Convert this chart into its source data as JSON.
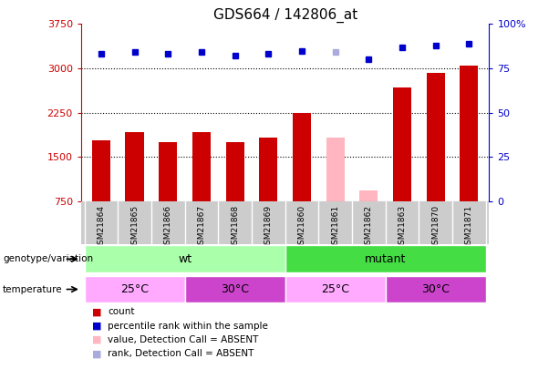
{
  "title": "GDS664 / 142806_at",
  "samples": [
    "GSM21864",
    "GSM21865",
    "GSM21866",
    "GSM21867",
    "GSM21868",
    "GSM21869",
    "GSM21860",
    "GSM21861",
    "GSM21862",
    "GSM21863",
    "GSM21870",
    "GSM21871"
  ],
  "counts": [
    1780,
    1930,
    1760,
    1930,
    1760,
    1830,
    2250,
    1830,
    940,
    2680,
    2930,
    3040
  ],
  "count_colors": [
    "#cc0000",
    "#cc0000",
    "#cc0000",
    "#cc0000",
    "#cc0000",
    "#cc0000",
    "#cc0000",
    "#ffb6c1",
    "#ffb6c1",
    "#cc0000",
    "#cc0000",
    "#cc0000"
  ],
  "percentile_ranks": [
    83,
    84,
    83,
    84,
    82,
    83,
    85,
    84,
    80,
    87,
    88,
    89
  ],
  "rank_colors": [
    "#0000cc",
    "#0000cc",
    "#0000cc",
    "#0000cc",
    "#0000cc",
    "#0000cc",
    "#0000cc",
    "#aaaadd",
    "#0000cc",
    "#0000cc",
    "#0000cc",
    "#0000cc"
  ],
  "ylim_left": [
    750,
    3750
  ],
  "ylim_right": [
    0,
    100
  ],
  "yticks_left": [
    750,
    1500,
    2250,
    3000,
    3750
  ],
  "yticks_right": [
    0,
    25,
    50,
    75,
    100
  ],
  "ytick_labels_right": [
    "0",
    "25",
    "50",
    "75",
    "100%"
  ],
  "grid_values": [
    1500,
    2250,
    3000
  ],
  "genotype_groups": [
    {
      "label": "wt",
      "start": 0,
      "end": 6,
      "color": "#aaffaa"
    },
    {
      "label": "mutant",
      "start": 6,
      "end": 12,
      "color": "#44dd44"
    }
  ],
  "temperature_groups": [
    {
      "label": "25°C",
      "start": 0,
      "end": 3,
      "color": "#ffaaff"
    },
    {
      "label": "30°C",
      "start": 3,
      "end": 6,
      "color": "#cc44cc"
    },
    {
      "label": "25°C",
      "start": 6,
      "end": 9,
      "color": "#ffaaff"
    },
    {
      "label": "30°C",
      "start": 9,
      "end": 12,
      "color": "#cc44cc"
    }
  ],
  "legend_items": [
    {
      "label": "count",
      "color": "#cc0000"
    },
    {
      "label": "percentile rank within the sample",
      "color": "#0000cc"
    },
    {
      "label": "value, Detection Call = ABSENT",
      "color": "#ffb6c1"
    },
    {
      "label": "rank, Detection Call = ABSENT",
      "color": "#aaaadd"
    }
  ],
  "genotype_label": "genotype/variation",
  "temperature_label": "temperature",
  "bar_width": 0.55,
  "sample_bg_color": "#cccccc",
  "spine_color": "#888888"
}
